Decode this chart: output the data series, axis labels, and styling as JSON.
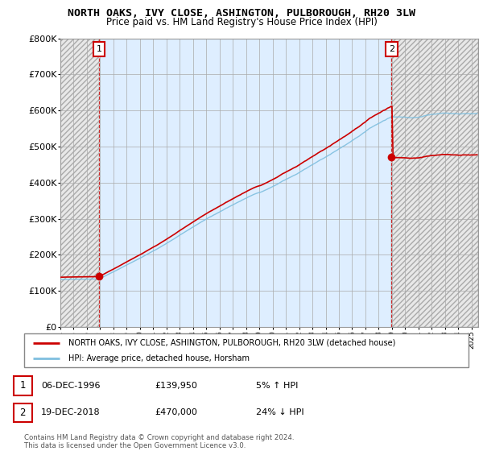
{
  "title": "NORTH OAKS, IVY CLOSE, ASHINGTON, PULBOROUGH, RH20 3LW",
  "subtitle": "Price paid vs. HM Land Registry's House Price Index (HPI)",
  "ylim": [
    0,
    800000
  ],
  "yticks": [
    0,
    100000,
    200000,
    300000,
    400000,
    500000,
    600000,
    700000,
    800000
  ],
  "ytick_labels": [
    "£0",
    "£100K",
    "£200K",
    "£300K",
    "£400K",
    "£500K",
    "£600K",
    "£700K",
    "£800K"
  ],
  "hpi_color": "#7fbfdf",
  "price_color": "#cc0000",
  "sale1_year": 1996.92,
  "sale1_price": 139950,
  "sale2_year": 2018.96,
  "sale2_price": 470000,
  "hpi_at_sale1_pct": 1.05,
  "hpi_at_sale2_pct": 1.24,
  "xmin": 1994.0,
  "xmax": 2025.5,
  "legend_line1": "NORTH OAKS, IVY CLOSE, ASHINGTON, PULBOROUGH, RH20 3LW (detached house)",
  "legend_line2": "HPI: Average price, detached house, Horsham",
  "table_row1_num": "1",
  "table_row1_date": "06-DEC-1996",
  "table_row1_price": "£139,950",
  "table_row1_hpi": "5% ↑ HPI",
  "table_row2_num": "2",
  "table_row2_date": "19-DEC-2018",
  "table_row2_price": "£470,000",
  "table_row2_hpi": "24% ↓ HPI",
  "footer": "Contains HM Land Registry data © Crown copyright and database right 2024.\nThis data is licensed under the Open Government Licence v3.0.",
  "bg_color": "#ffffff",
  "active_bg": "#deeeff",
  "hatch_bg": "#e8e8e8"
}
